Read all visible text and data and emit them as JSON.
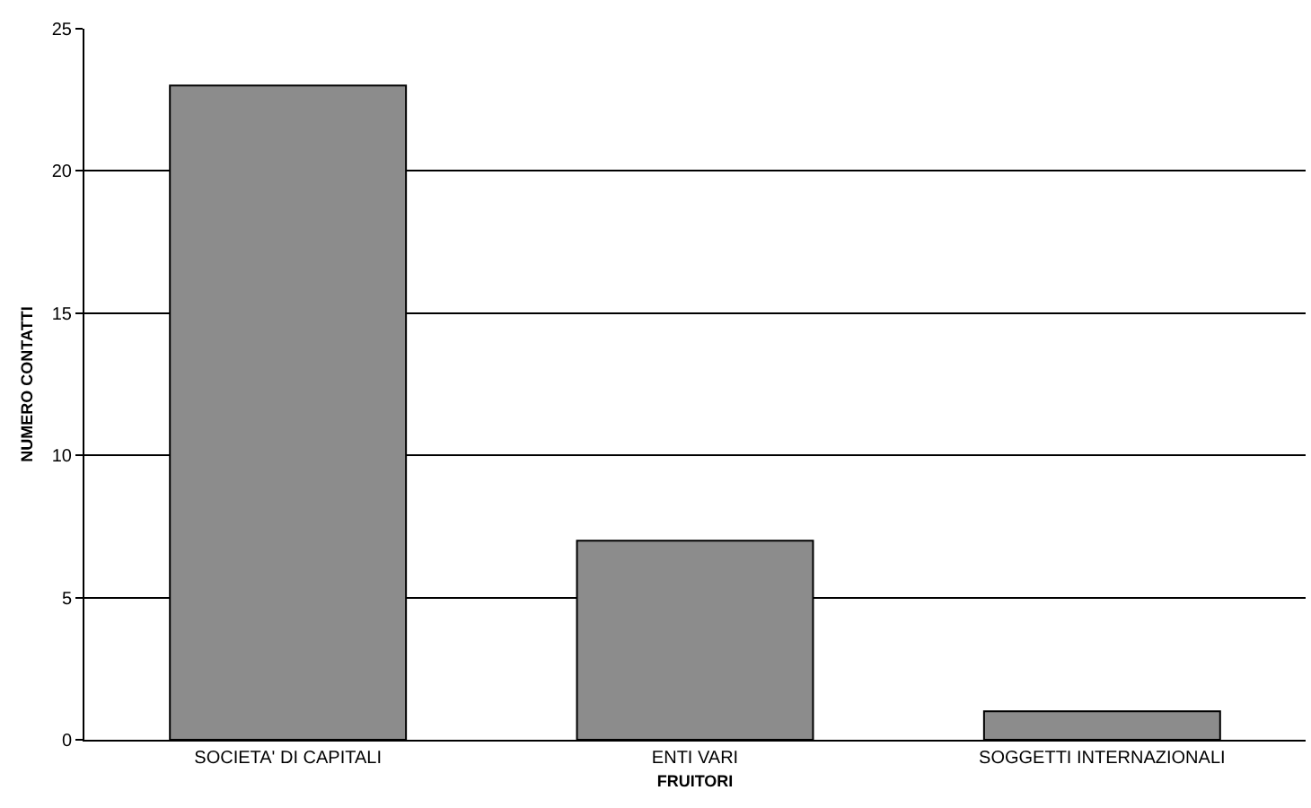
{
  "chart_data": {
    "type": "bar",
    "xlabel": "FRUITORI",
    "ylabel": "NUMERO CONTATTI",
    "categories": [
      "SOCIETA' DI CAPITALI",
      "ENTI VARI",
      "SOGGETTI INTERNAZIONALI"
    ],
    "values": [
      23,
      7,
      1
    ],
    "color": "#8c8c8c",
    "ylim": [
      0,
      25
    ],
    "yticks": [
      0,
      5,
      10,
      15,
      20,
      25
    ],
    "grid": "y"
  }
}
